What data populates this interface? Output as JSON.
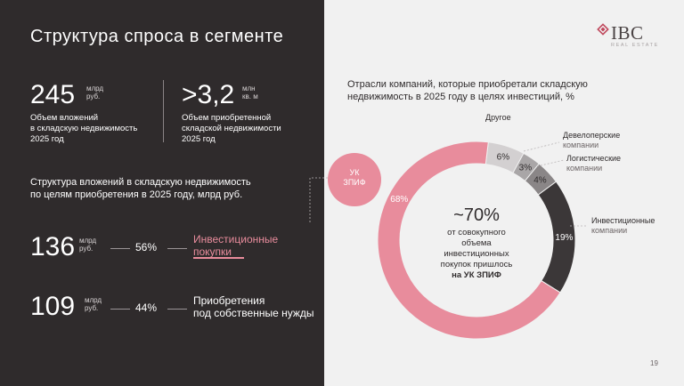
{
  "title": "Структура спроса в сегменте",
  "stats": [
    {
      "value": "245",
      "unit_line1": "млрд",
      "unit_line2": "руб.",
      "caption": [
        "Объем вложений",
        "в складскую недвижимость",
        "2025 год"
      ]
    },
    {
      "value": ">3,2",
      "unit_line1": "млн",
      "unit_line2": "кв. м",
      "caption": [
        "Объем приобретенной",
        "складской недвижимости",
        "2025 год"
      ]
    }
  ],
  "subtitle": [
    "Структура вложений в складскую недвижимость",
    "по целям приобретения в 2025 году, млрд руб."
  ],
  "rows": [
    {
      "value": "136",
      "unit_line1": "млрд",
      "unit_line2": "руб.",
      "pct": "56%",
      "label": [
        "Инвестиционные",
        "покупки"
      ],
      "highlight": true
    },
    {
      "value": "109",
      "unit_line1": "млрд",
      "unit_line2": "руб.",
      "pct": "44%",
      "label": [
        "Приобретения",
        "под собственные нужды"
      ],
      "highlight": false
    }
  ],
  "logo": {
    "text": "IBC",
    "sub": "REAL ESTATE"
  },
  "page_number": "19",
  "uk_bubble": [
    "УК",
    "ЗПИФ"
  ],
  "center": {
    "big": "~70%",
    "small": [
      "от совокупного",
      "объема",
      "инвестиционных",
      "покупок пришлось"
    ],
    "bold": "на УК ЗПИФ"
  },
  "colors": {
    "pink": "#e88c9c",
    "dark": "#2f2b2c",
    "grey_light": "#d3d0d1",
    "grey_mid": "#a9a6a7",
    "grey_dark": "#8a8687",
    "charcoal": "#3b3738"
  },
  "chart_data": {
    "type": "pie",
    "title": "Отрасли компаний, которые приобретали складскую недвижимость в 2025 году в целях инвестиций, %",
    "title_lines": [
      "Отрасли компаний, которые приобретали складскую",
      "недвижимость в 2025 году в целях инвестиций, %"
    ],
    "donut": true,
    "slices": [
      {
        "name": "Другое",
        "value": 6,
        "label": "6%",
        "color": "#d3d0d1"
      },
      {
        "name": "Девелоперские компании",
        "name_lines": [
          "Девелоперские",
          "компании"
        ],
        "value": 3,
        "label": "3%",
        "color": "#a9a6a7"
      },
      {
        "name": "Логистические компании",
        "name_lines": [
          "Логистические",
          "компании"
        ],
        "value": 4,
        "label": "4%",
        "color": "#8a8687"
      },
      {
        "name": "Инвестиционные компании",
        "name_lines": [
          "Инвестиционные",
          "компании"
        ],
        "value": 19,
        "label": "19%",
        "color": "#3b3738"
      },
      {
        "name": "УК ЗПИФ",
        "value": 68,
        "label": "68%",
        "color": "#e88c9c"
      }
    ]
  }
}
